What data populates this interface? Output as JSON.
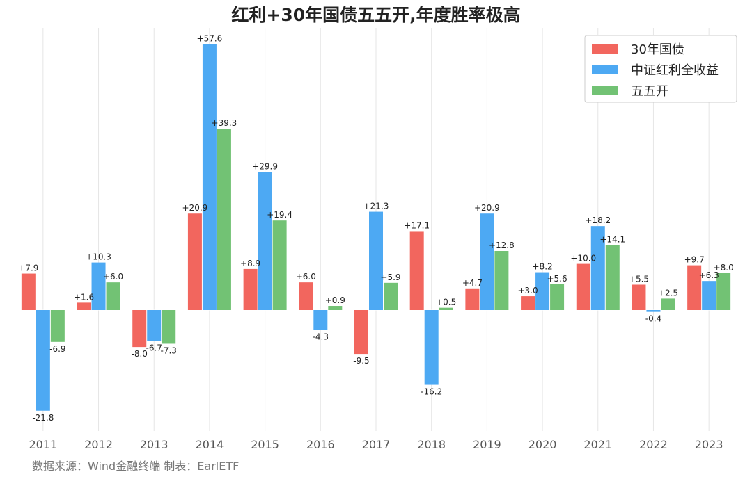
{
  "chart_data": {
    "type": "bar",
    "title": "红利+30年国债五五开,年度胜率极高",
    "source": "数据来源：Wind金融终端 制表：EarlETF",
    "categories": [
      "2011",
      "2012",
      "2013",
      "2014",
      "2015",
      "2016",
      "2017",
      "2018",
      "2019",
      "2020",
      "2021",
      "2022",
      "2023"
    ],
    "ylim": [
      -26,
      64
    ],
    "grid": "vertical",
    "legend_position": "top-right",
    "series": [
      {
        "name": "30年国债",
        "color": "#F2665E",
        "values": [
          7.9,
          1.6,
          -8.0,
          20.9,
          8.9,
          6.0,
          -9.5,
          17.1,
          4.7,
          3.0,
          10.0,
          5.5,
          9.7
        ],
        "labels": [
          "+7.9",
          "+1.6",
          "-8.0",
          "+20.9",
          "+8.9",
          "+6.0",
          "-9.5",
          "+17.1",
          "+4.7",
          "+3.0",
          "+10.0",
          "+5.5",
          "+9.7"
        ]
      },
      {
        "name": "中证红利全收益",
        "color": "#4DA9F3",
        "values": [
          -21.8,
          10.3,
          -6.7,
          57.6,
          29.9,
          -4.3,
          21.3,
          -16.2,
          20.9,
          8.2,
          18.2,
          -0.4,
          6.3
        ],
        "labels": [
          "-21.8",
          "+10.3",
          "-6.7",
          "+57.6",
          "+29.9",
          "-4.3",
          "+21.3",
          "-16.2",
          "+20.9",
          "+8.2",
          "+18.2",
          "-0.4",
          "+6.3"
        ]
      },
      {
        "name": "五五开",
        "color": "#72C274",
        "values": [
          -6.9,
          6.0,
          -7.3,
          39.3,
          19.4,
          0.9,
          5.9,
          0.5,
          12.8,
          5.6,
          14.1,
          2.5,
          8.0
        ],
        "labels": [
          "-6.9",
          "+6.0",
          "-7.3",
          "+39.3",
          "+19.4",
          "+0.9",
          "+5.9",
          "+0.5",
          "+12.8",
          "+5.6",
          "+14.1",
          "+2.5",
          "+8.0"
        ]
      }
    ]
  }
}
